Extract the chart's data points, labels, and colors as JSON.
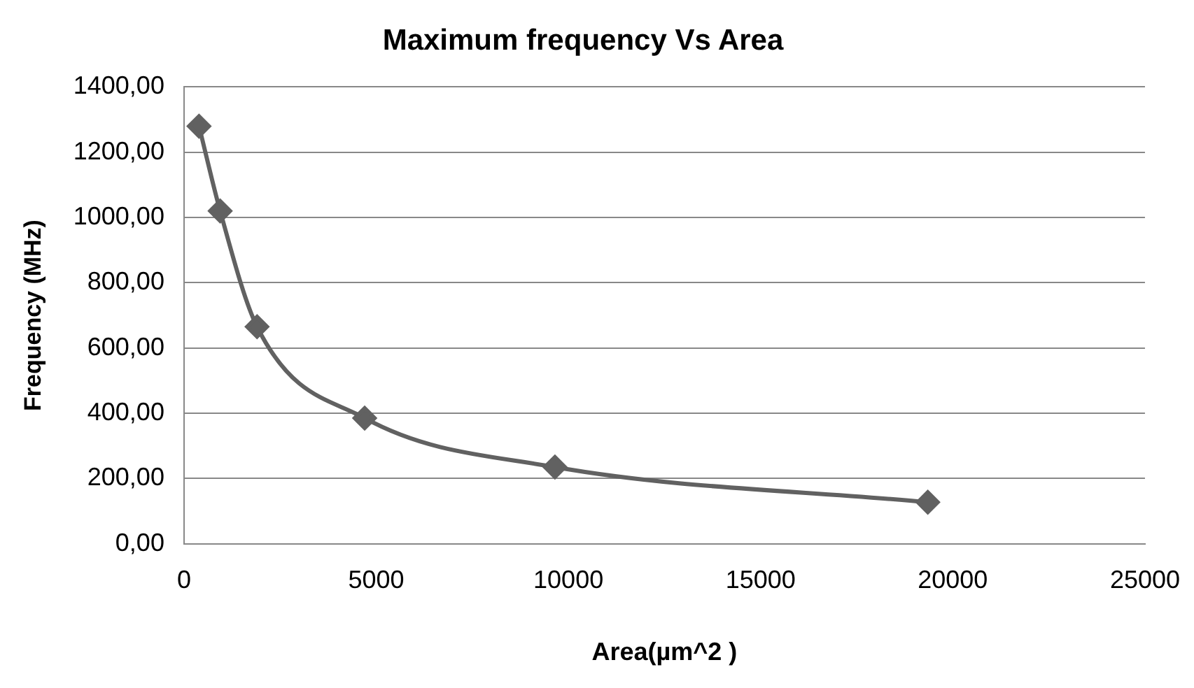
{
  "chart_data": {
    "type": "line",
    "title": "Maximum frequency Vs Area",
    "xlabel": "Area(µm^2 )",
    "ylabel": "Frequency (MHz)",
    "x": [
      390,
      940,
      1900,
      4700,
      9650,
      19350
    ],
    "series": [
      {
        "color": "#616161",
        "values": [
          1280,
          1020,
          665,
          385,
          235,
          127
        ]
      }
    ],
    "xlim": [
      0,
      25000
    ],
    "xticks": [
      0,
      5000,
      10000,
      15000,
      20000,
      25000
    ],
    "ylim": [
      0,
      1400
    ],
    "yticks": [
      {
        "value": 0,
        "label": "0,00"
      },
      {
        "value": 200,
        "label": "200,00"
      },
      {
        "value": 400,
        "label": "400,00"
      },
      {
        "value": 600,
        "label": "600,00"
      },
      {
        "value": 800,
        "label": "800,00"
      },
      {
        "value": 1000,
        "label": "1000,00"
      },
      {
        "value": 1200,
        "label": "1200,00"
      },
      {
        "value": 1400,
        "label": "1400,00"
      }
    ],
    "grid": "y",
    "legend": false,
    "marker": "diamond",
    "line_style": "solid"
  }
}
